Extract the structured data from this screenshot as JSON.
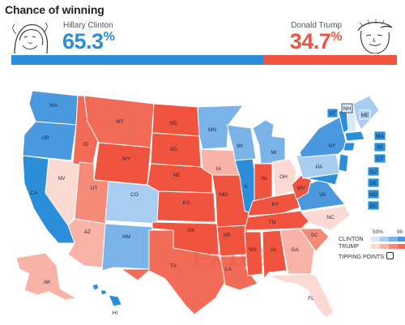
{
  "title": "Chance of winning",
  "candidates": {
    "left": {
      "name": "Hillary Clinton",
      "pct": "65.3",
      "pct_sign": "%",
      "share": 0.653,
      "color": "#2a8fd8"
    },
    "right": {
      "name": "Donald Trump",
      "pct": "34.7",
      "pct_sign": "%",
      "share": 0.347,
      "color": "#f0533e"
    }
  },
  "legend": {
    "scale_low": "50%",
    "scale_high": "90",
    "clinton_label": "CLINTON",
    "trump_label": "TRUMP",
    "tipping_label": "TIPPING POINTS",
    "clinton_colors": [
      "#d9e9f8",
      "#a9cdf0",
      "#7ab3e8",
      "#4a98de",
      "#2a8fd8"
    ],
    "trump_colors": [
      "#fbdad4",
      "#f8b2a6",
      "#f58a79",
      "#f26b57",
      "#f0533e"
    ]
  },
  "watermark": "FX168",
  "states": {
    "WA": "WA",
    "OR": "OR",
    "CA": "CA",
    "NV": "NV",
    "ID": "ID",
    "MT": "MT",
    "WY": "WY",
    "UT": "UT",
    "AZ": "AZ",
    "CO": "CO",
    "NM": "NM",
    "ND": "ND",
    "SD": "SD",
    "NE": "NE",
    "KS": "KS",
    "OK": "OK",
    "TX": "TX",
    "MN": "MN",
    "IA": "IA",
    "MO": "MO",
    "AR": "AR",
    "LA": "LA",
    "WI": "WI",
    "IL": "IL",
    "MI": "MI",
    "IN": "IN",
    "OH": "OH",
    "KY": "KY",
    "TN": "TN",
    "MS": "MS",
    "AL": "AL",
    "GA": "GA",
    "FL": "FL",
    "SC": "SC",
    "NC": "NC",
    "VA": "VA",
    "WV": "WV",
    "PA": "PA",
    "NY": "NY",
    "VT": "VT",
    "NH": "NH",
    "ME": "ME",
    "MA": "MA",
    "RI": "RI",
    "CT": "CT",
    "NJ": "NJ",
    "DE": "DE",
    "MD": "MD",
    "DC": "DC",
    "AK": "AK",
    "HI": "HI"
  }
}
